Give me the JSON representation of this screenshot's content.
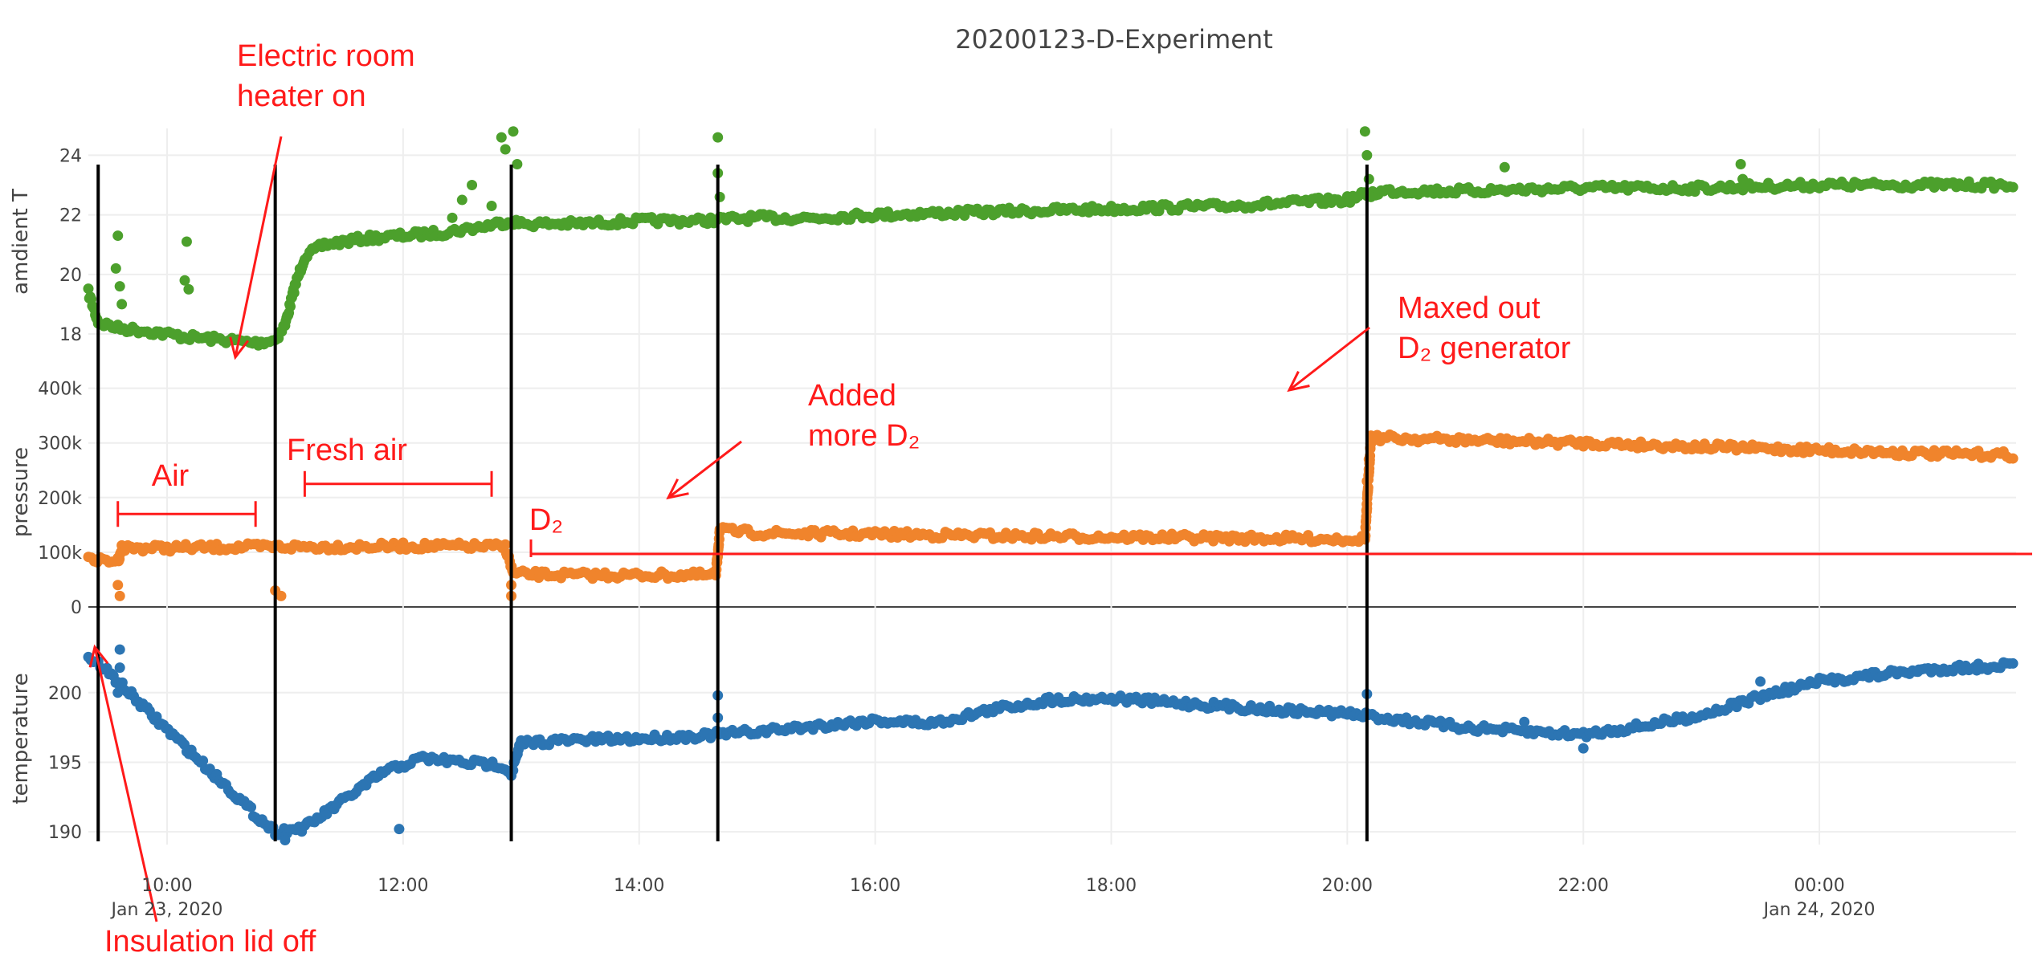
{
  "chart_data": {
    "type": "scatter",
    "title": "20200123-D-Experiment",
    "x_range": [
      "2020-01-23 09:20",
      "2020-01-24 01:40"
    ],
    "x_ticks": [
      {
        "t": "2020-01-23 10:00",
        "label": "10:00",
        "sub": "Jan 23, 2020"
      },
      {
        "t": "2020-01-23 12:00",
        "label": "12:00",
        "sub": ""
      },
      {
        "t": "2020-01-23 14:00",
        "label": "14:00",
        "sub": ""
      },
      {
        "t": "2020-01-23 16:00",
        "label": "16:00",
        "sub": ""
      },
      {
        "t": "2020-01-23 18:00",
        "label": "18:00",
        "sub": ""
      },
      {
        "t": "2020-01-23 20:00",
        "label": "20:00",
        "sub": ""
      },
      {
        "t": "2020-01-23 22:00",
        "label": "22:00",
        "sub": ""
      },
      {
        "t": "2020-01-24 00:00",
        "label": "00:00",
        "sub": "Jan 24, 2020"
      }
    ],
    "grid": true,
    "legend": "none",
    "panels": [
      {
        "key": "ambient",
        "ylabel": "amdient T",
        "ylim": [
          17.3,
          24.9
        ],
        "color": "#4ca02c",
        "yticks": [
          {
            "v": 18,
            "label": "18"
          },
          {
            "v": 20,
            "label": "20"
          },
          {
            "v": 22,
            "label": "22"
          },
          {
            "v": 24,
            "label": "24"
          }
        ],
        "points": [
          [
            "2020-01-23 09:20",
            19.4
          ],
          [
            "2020-01-23 09:25",
            18.4
          ],
          [
            "2020-01-23 09:35",
            18.2
          ],
          [
            "2020-01-23 09:50",
            18.1
          ],
          [
            "2020-01-23 10:10",
            17.9
          ],
          [
            "2020-01-23 10:30",
            17.8
          ],
          [
            "2020-01-23 10:45",
            17.7
          ],
          [
            "2020-01-23 10:55",
            17.8
          ],
          [
            "2020-01-23 11:00",
            18.3
          ],
          [
            "2020-01-23 11:05",
            19.6
          ],
          [
            "2020-01-23 11:10",
            20.6
          ],
          [
            "2020-01-23 11:20",
            21.0
          ],
          [
            "2020-01-23 11:40",
            21.2
          ],
          [
            "2020-01-23 12:00",
            21.3
          ],
          [
            "2020-01-23 12:20",
            21.4
          ],
          [
            "2020-01-23 12:40",
            21.6
          ],
          [
            "2020-01-23 12:55",
            21.8
          ],
          [
            "2020-01-23 13:00",
            21.7
          ],
          [
            "2020-01-23 13:30",
            21.7
          ],
          [
            "2020-01-23 14:00",
            21.8
          ],
          [
            "2020-01-23 14:30",
            21.8
          ],
          [
            "2020-01-23 15:00",
            21.9
          ],
          [
            "2020-01-23 15:30",
            21.9
          ],
          [
            "2020-01-23 16:00",
            22.0
          ],
          [
            "2020-01-23 17:00",
            22.1
          ],
          [
            "2020-01-23 18:00",
            22.2
          ],
          [
            "2020-01-23 19:00",
            22.3
          ],
          [
            "2020-01-23 20:00",
            22.5
          ],
          [
            "2020-01-23 20:10",
            22.7
          ],
          [
            "2020-01-23 20:20",
            22.8
          ],
          [
            "2020-01-23 21:00",
            22.8
          ],
          [
            "2020-01-23 22:00",
            22.9
          ],
          [
            "2020-01-23 23:00",
            22.9
          ],
          [
            "2020-01-24 00:00",
            23.0
          ],
          [
            "2020-01-24 01:00",
            23.0
          ],
          [
            "2020-01-24 01:40",
            23.0
          ]
        ],
        "outliers": [
          [
            "2020-01-23 09:35",
            21.3
          ],
          [
            "2020-01-23 09:34",
            20.2
          ],
          [
            "2020-01-23 09:36",
            19.6
          ],
          [
            "2020-01-23 09:37",
            19.0
          ],
          [
            "2020-01-23 10:10",
            21.1
          ],
          [
            "2020-01-23 10:09",
            19.8
          ],
          [
            "2020-01-23 10:11",
            19.5
          ],
          [
            "2020-01-23 12:25",
            21.9
          ],
          [
            "2020-01-23 12:30",
            22.5
          ],
          [
            "2020-01-23 12:35",
            23.0
          ],
          [
            "2020-01-23 12:45",
            22.3
          ],
          [
            "2020-01-23 12:50",
            24.6
          ],
          [
            "2020-01-23 12:52",
            24.2
          ],
          [
            "2020-01-23 12:56",
            24.8
          ],
          [
            "2020-01-23 12:58",
            23.7
          ],
          [
            "2020-01-23 14:40",
            24.6
          ],
          [
            "2020-01-23 14:40",
            23.4
          ],
          [
            "2020-01-23 14:41",
            22.6
          ],
          [
            "2020-01-23 20:09",
            24.8
          ],
          [
            "2020-01-23 20:10",
            24.0
          ],
          [
            "2020-01-23 20:11",
            23.2
          ],
          [
            "2020-01-23 20:12",
            22.6
          ],
          [
            "2020-01-23 21:20",
            23.6
          ],
          [
            "2020-01-23 23:20",
            23.7
          ],
          [
            "2020-01-23 23:21",
            23.2
          ]
        ]
      },
      {
        "key": "pressure",
        "ylabel": "pressure",
        "ylim": [
          0,
          420000
        ],
        "color": "#f0842c",
        "yticks": [
          {
            "v": 0,
            "label": "0"
          },
          {
            "v": 100000,
            "label": "100k"
          },
          {
            "v": 200000,
            "label": "200k"
          },
          {
            "v": 300000,
            "label": "300k"
          },
          {
            "v": 400000,
            "label": "400k"
          }
        ],
        "points": [
          [
            "2020-01-23 09:20",
            85000
          ],
          [
            "2020-01-23 09:35",
            85000
          ],
          [
            "2020-01-23 09:37",
            108000
          ],
          [
            "2020-01-23 10:00",
            108000
          ],
          [
            "2020-01-23 10:30",
            109000
          ],
          [
            "2020-01-23 11:00",
            110000
          ],
          [
            "2020-01-23 11:30",
            110000
          ],
          [
            "2020-01-23 12:00",
            111000
          ],
          [
            "2020-01-23 12:30",
            111000
          ],
          [
            "2020-01-23 12:52",
            110000
          ],
          [
            "2020-01-23 12:56",
            60000
          ],
          [
            "2020-01-23 13:30",
            58000
          ],
          [
            "2020-01-23 14:00",
            58000
          ],
          [
            "2020-01-23 14:39",
            58000
          ],
          [
            "2020-01-23 14:41",
            140000
          ],
          [
            "2020-01-23 15:00",
            135000
          ],
          [
            "2020-01-23 16:00",
            133000
          ],
          [
            "2020-01-23 17:00",
            130000
          ],
          [
            "2020-01-23 18:00",
            128000
          ],
          [
            "2020-01-23 19:00",
            126000
          ],
          [
            "2020-01-23 20:09",
            124000
          ],
          [
            "2020-01-23 20:12",
            310000
          ],
          [
            "2020-01-23 21:00",
            305000
          ],
          [
            "2020-01-23 22:00",
            300000
          ],
          [
            "2020-01-23 23:00",
            293000
          ],
          [
            "2020-01-24 00:00",
            287000
          ],
          [
            "2020-01-24 01:00",
            280000
          ],
          [
            "2020-01-24 01:40",
            278000
          ]
        ],
        "outliers": [
          [
            "2020-01-23 09:36",
            20000
          ],
          [
            "2020-01-23 09:35",
            40000
          ],
          [
            "2020-01-23 10:55",
            30000
          ],
          [
            "2020-01-23 10:58",
            20000
          ],
          [
            "2020-01-23 12:55",
            20000
          ],
          [
            "2020-01-23 12:55",
            40000
          ],
          [
            "2020-01-23 20:10",
            180000
          ],
          [
            "2020-01-23 20:10",
            230000
          ],
          [
            "2020-01-23 20:11",
            270000
          ]
        ]
      },
      {
        "key": "temperature",
        "ylabel": "temperature",
        "ylim": [
          189.2,
          204.2
        ],
        "color": "#2c75b3",
        "yticks": [
          {
            "v": 190,
            "label": "190"
          },
          {
            "v": 195,
            "label": "195"
          },
          {
            "v": 200,
            "label": "200"
          }
        ],
        "points": [
          [
            "2020-01-23 09:20",
            202.4
          ],
          [
            "2020-01-23 09:25",
            202.1
          ],
          [
            "2020-01-23 09:35",
            200.8
          ],
          [
            "2020-01-23 09:50",
            198.7
          ],
          [
            "2020-01-23 10:10",
            196.0
          ],
          [
            "2020-01-23 10:30",
            193.3
          ],
          [
            "2020-01-23 10:45",
            191.2
          ],
          [
            "2020-01-23 10:55",
            190.0
          ],
          [
            "2020-01-23 11:10",
            190.3
          ],
          [
            "2020-01-23 11:30",
            192.3
          ],
          [
            "2020-01-23 11:50",
            194.3
          ],
          [
            "2020-01-23 12:10",
            195.3
          ],
          [
            "2020-01-23 12:30",
            195.0
          ],
          [
            "2020-01-23 12:50",
            194.8
          ],
          [
            "2020-01-23 12:55",
            194.2
          ],
          [
            "2020-01-23 13:00",
            196.4
          ],
          [
            "2020-01-23 13:30",
            196.6
          ],
          [
            "2020-01-23 14:00",
            196.7
          ],
          [
            "2020-01-23 14:30",
            196.9
          ],
          [
            "2020-01-23 15:00",
            197.2
          ],
          [
            "2020-01-23 15:30",
            197.6
          ],
          [
            "2020-01-23 16:00",
            198.0
          ],
          [
            "2020-01-23 16:30",
            197.8
          ],
          [
            "2020-01-23 17:00",
            198.8
          ],
          [
            "2020-01-23 17:30",
            199.5
          ],
          [
            "2020-01-23 18:00",
            199.6
          ],
          [
            "2020-01-23 18:30",
            199.3
          ],
          [
            "2020-01-23 19:00",
            199.0
          ],
          [
            "2020-01-23 19:30",
            198.7
          ],
          [
            "2020-01-23 20:00",
            198.5
          ],
          [
            "2020-01-23 20:30",
            198.0
          ],
          [
            "2020-01-23 21:00",
            197.5
          ],
          [
            "2020-01-23 21:30",
            197.2
          ],
          [
            "2020-01-23 22:00",
            197.0
          ],
          [
            "2020-01-23 22:30",
            197.6
          ],
          [
            "2020-01-23 23:00",
            198.4
          ],
          [
            "2020-01-23 23:30",
            199.7
          ],
          [
            "2020-01-24 00:00",
            200.8
          ],
          [
            "2020-01-24 00:30",
            201.3
          ],
          [
            "2020-01-24 01:00",
            201.7
          ],
          [
            "2020-01-24 01:40",
            202.0
          ]
        ],
        "outliers": [
          [
            "2020-01-23 09:35",
            200.0
          ],
          [
            "2020-01-23 09:36",
            201.8
          ],
          [
            "2020-01-23 09:36",
            203.1
          ],
          [
            "2020-01-23 11:00",
            189.4
          ],
          [
            "2020-01-23 11:58",
            190.2
          ],
          [
            "2020-01-23 14:40",
            199.8
          ],
          [
            "2020-01-23 14:40",
            198.2
          ],
          [
            "2020-01-23 20:10",
            199.9
          ],
          [
            "2020-01-23 21:30",
            197.9
          ],
          [
            "2020-01-23 22:00",
            196.0
          ],
          [
            "2020-01-23 23:30",
            200.8
          ],
          [
            "2020-01-24 00:50",
            201.5
          ],
          [
            "2020-01-24 01:20",
            201.6
          ]
        ]
      }
    ],
    "event_lines": [
      "2020-01-23 09:25",
      "2020-01-23 10:55",
      "2020-01-23 12:55",
      "2020-01-23 14:40",
      "2020-01-23 20:10"
    ],
    "reference_line": {
      "panel": "pressure",
      "value": 97000,
      "from": "2020-01-23 13:05",
      "to": "2020-01-24 01:40"
    },
    "spans": [
      {
        "from": "2020-01-23 09:35",
        "to": "2020-01-23 10:45",
        "panel": "pressure",
        "value": 170000
      },
      {
        "from": "2020-01-23 11:10",
        "to": "2020-01-23 12:45",
        "panel": "pressure",
        "value": 225000
      }
    ],
    "annotations": [
      {
        "key": "heater",
        "lines": [
          "Electric room",
          "heater on"
        ]
      },
      {
        "key": "air",
        "lines": [
          "Air"
        ]
      },
      {
        "key": "fresh",
        "lines": [
          "Fresh air"
        ]
      },
      {
        "key": "d2",
        "lines": [
          "D₂"
        ]
      },
      {
        "key": "added",
        "lines": [
          "Added",
          "more D₂"
        ]
      },
      {
        "key": "maxed",
        "lines": [
          "Maxed out",
          "D₂ generator"
        ]
      },
      {
        "key": "lid",
        "lines": [
          "Insulation lid off"
        ]
      }
    ]
  }
}
